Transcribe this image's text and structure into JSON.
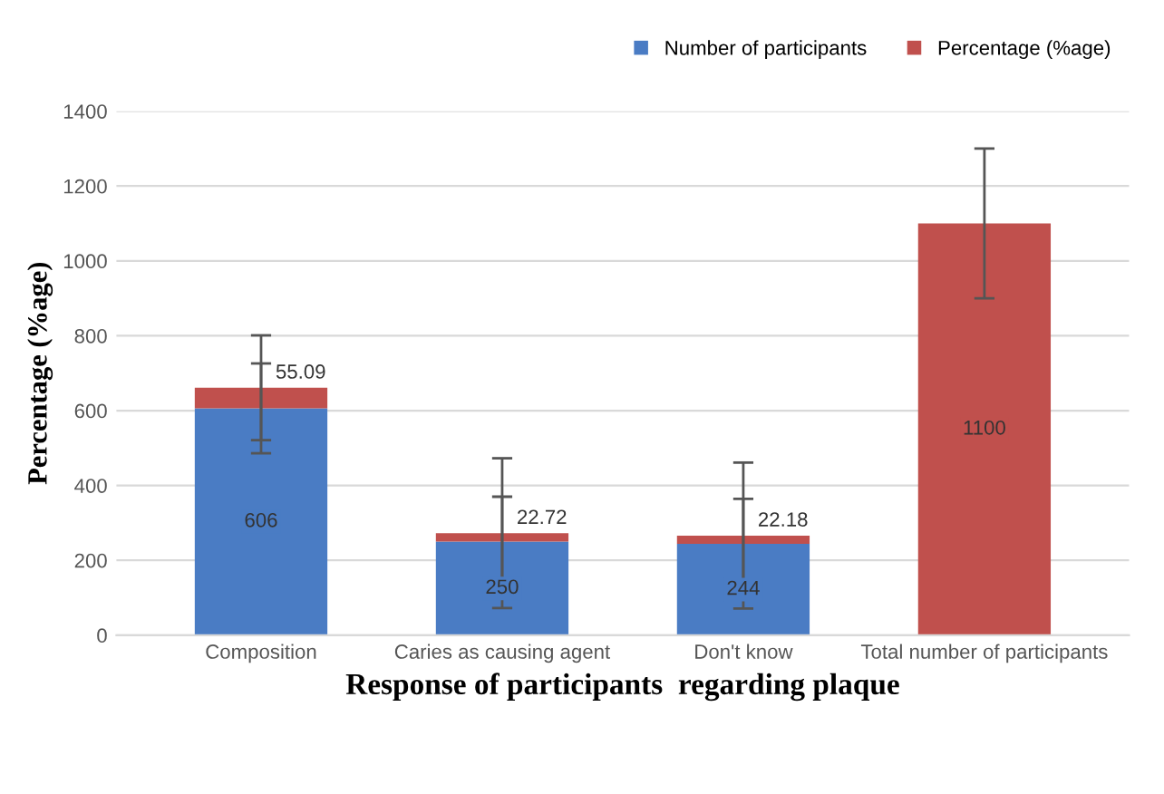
{
  "chart_data": {
    "type": "bar",
    "stacked": true,
    "xlabel": "Response of participants  regarding plaque",
    "ylabel": "Percentage (%age)",
    "categories": [
      "Composition",
      "Caries as causing agent",
      "Don't know",
      "Total number of participants"
    ],
    "series": [
      {
        "name": "Number of participants",
        "color": "#4a7cc4",
        "values": [
          606,
          250,
          244,
          null
        ],
        "errors": [
          120,
          120,
          120,
          null
        ]
      },
      {
        "name": "Percentage (%age)",
        "color": "#c0504d",
        "values": [
          55.09,
          22.72,
          22.18,
          1100
        ],
        "errors": [
          140,
          200,
          195,
          200
        ]
      }
    ],
    "ylim": [
      0,
      1400
    ],
    "yticks": [
      0,
      200,
      400,
      600,
      800,
      1000,
      1200,
      1400
    ],
    "grid": "y",
    "legend": "top right",
    "data_labels": true
  }
}
